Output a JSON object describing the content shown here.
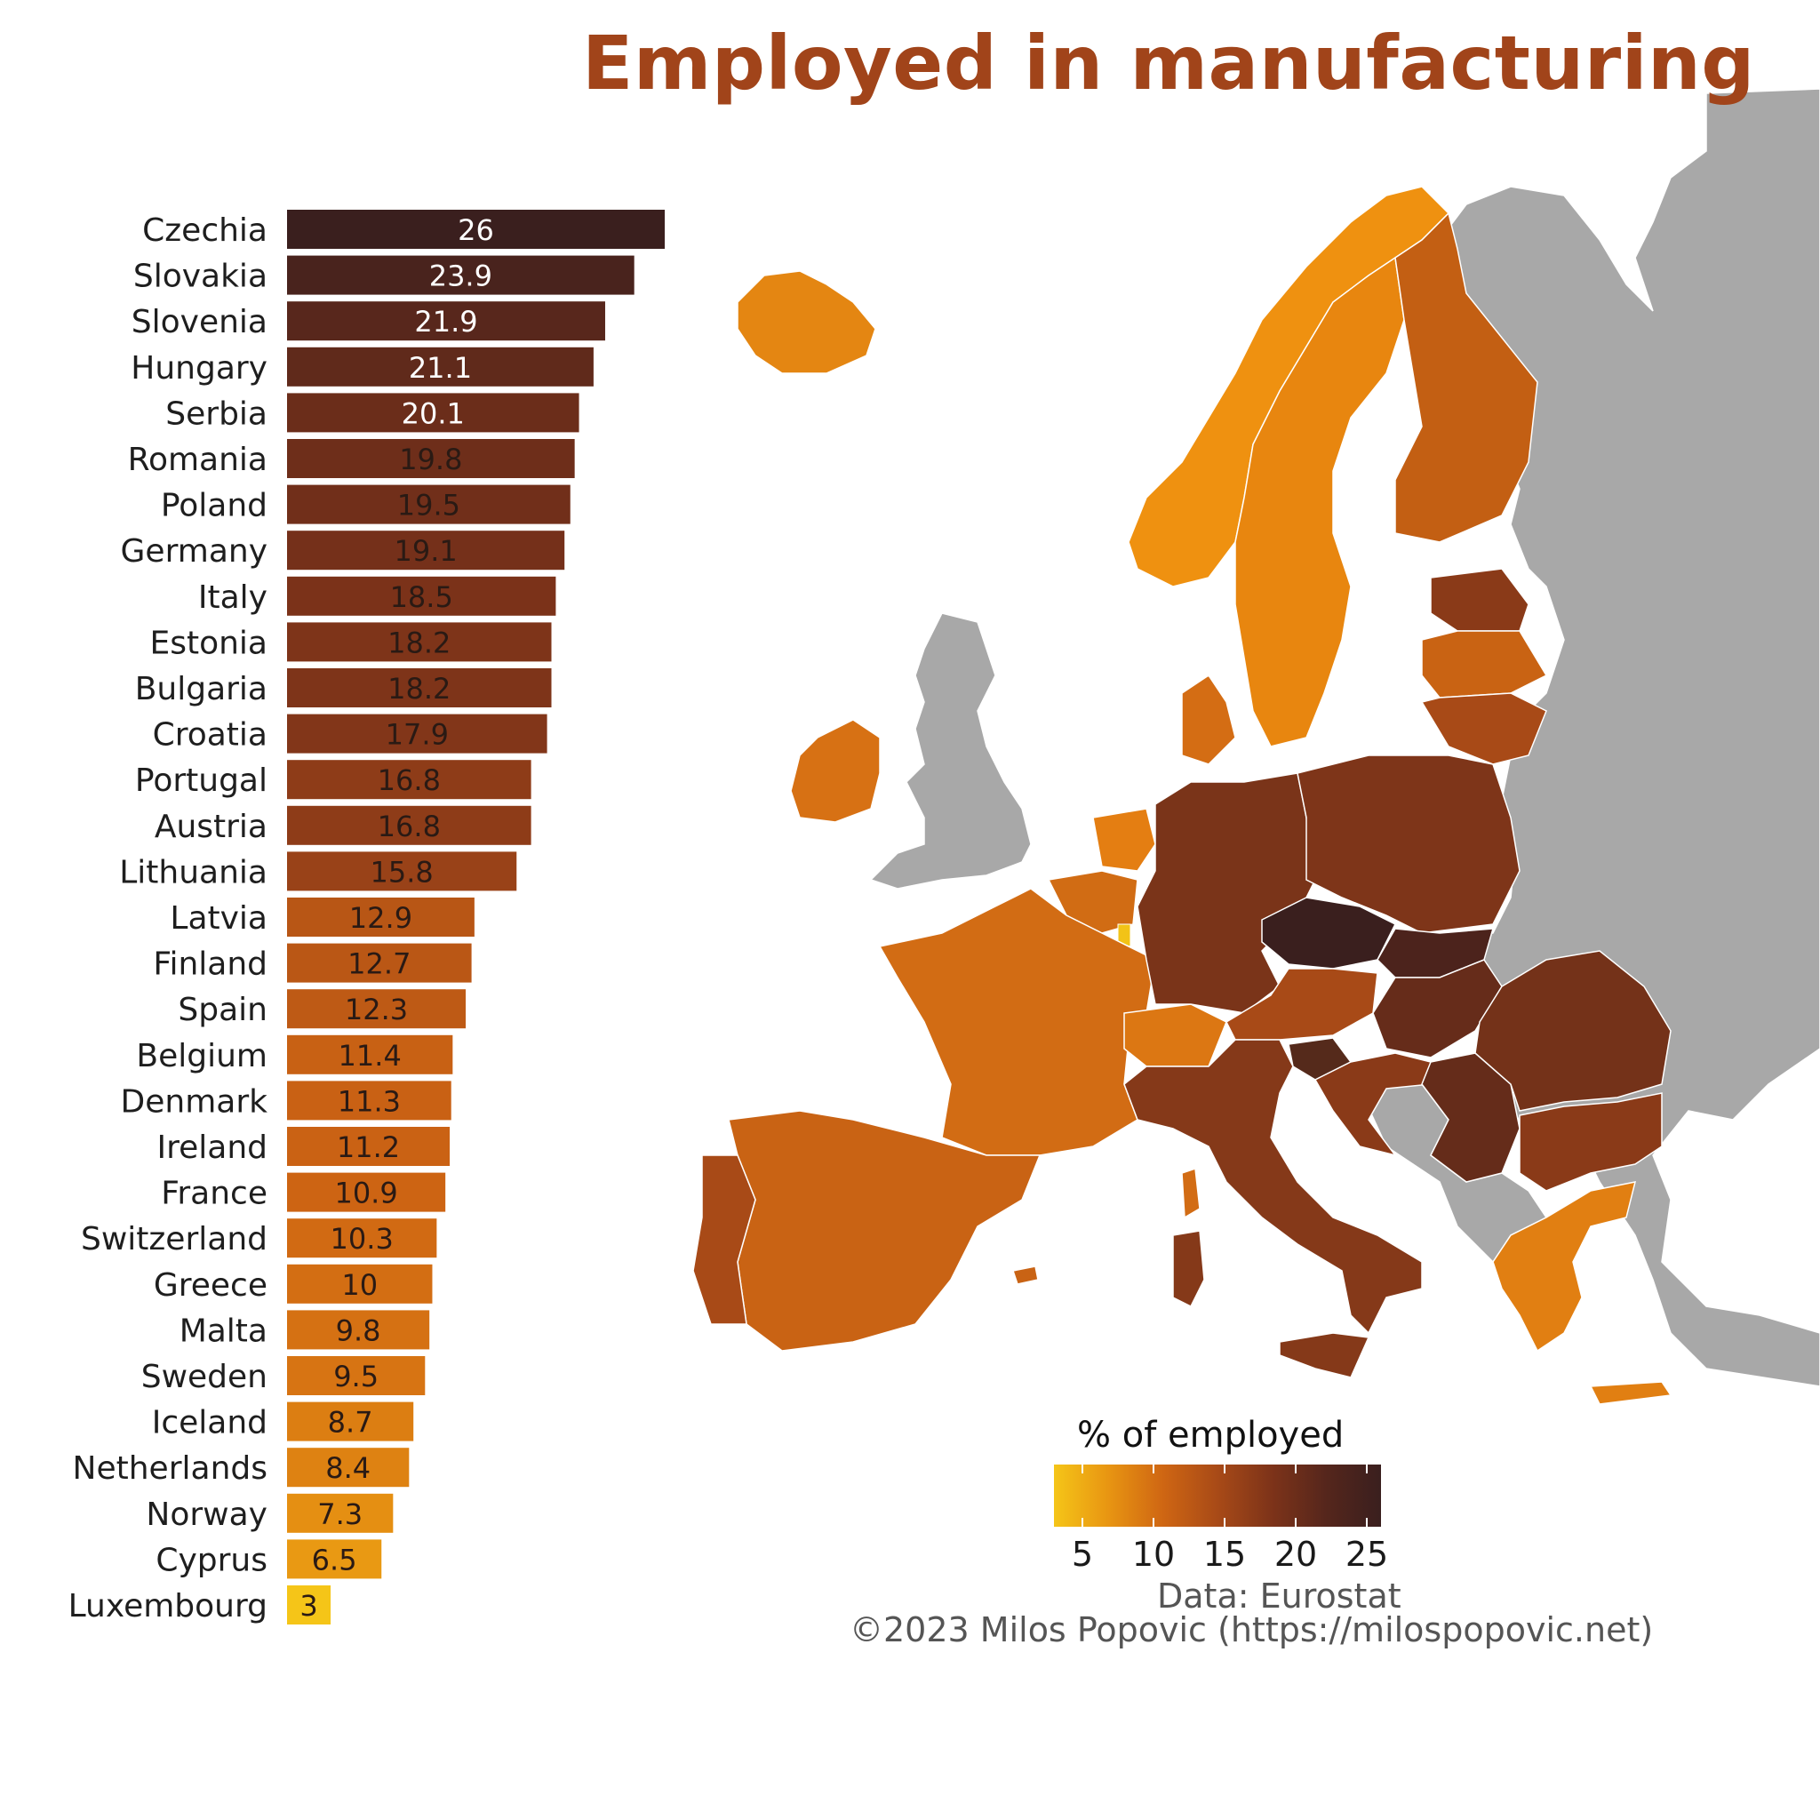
{
  "title": "Employed in manufacturing",
  "chart_data": {
    "type": "bar",
    "orientation": "horizontal",
    "title": "Employed in manufacturing",
    "xlabel": "% of employed",
    "ylabel": "",
    "xlim": [
      0,
      26
    ],
    "categories": [
      "Czechia",
      "Slovakia",
      "Slovenia",
      "Hungary",
      "Serbia",
      "Romania",
      "Poland",
      "Germany",
      "Italy",
      "Estonia",
      "Bulgaria",
      "Croatia",
      "Portugal",
      "Austria",
      "Lithuania",
      "Latvia",
      "Finland",
      "Spain",
      "Belgium",
      "Denmark",
      "Ireland",
      "France",
      "Switzerland",
      "Greece",
      "Malta",
      "Sweden",
      "Iceland",
      "Netherlands",
      "Norway",
      "Cyprus",
      "Luxembourg"
    ],
    "values": [
      26,
      23.9,
      21.9,
      21.1,
      20.1,
      19.8,
      19.5,
      19.1,
      18.5,
      18.2,
      18.2,
      17.9,
      16.8,
      16.8,
      15.8,
      12.9,
      12.7,
      12.3,
      11.4,
      11.3,
      11.2,
      10.9,
      10.3,
      10,
      9.8,
      9.5,
      8.7,
      8.4,
      7.3,
      6.5,
      3
    ],
    "value_labels": [
      "26",
      "23.9",
      "21.9",
      "21.1",
      "20.1",
      "19.8",
      "19.5",
      "19.1",
      "18.5",
      "18.2",
      "18.2",
      "17.9",
      "16.8",
      "16.8",
      "15.8",
      "12.9",
      "12.7",
      "12.3",
      "11.4",
      "11.3",
      "11.2",
      "10.9",
      "10.3",
      "10",
      "9.8",
      "9.5",
      "8.7",
      "8.4",
      "7.3",
      "6.5",
      "3"
    ],
    "colorscale": {
      "min": 3,
      "max": 26,
      "stops": [
        "#f5c518",
        "#e89512",
        "#cf6613",
        "#a84a17",
        "#7d3319",
        "#55261c",
        "#3a1f1e"
      ]
    }
  },
  "legend": {
    "title": "% of employed",
    "range": [
      3,
      26
    ],
    "ticks": [
      "5",
      "10",
      "15",
      "20",
      "25"
    ],
    "tick_values": [
      5,
      10,
      15,
      20,
      25
    ]
  },
  "map": {
    "no_data_color": "#a8a8a8",
    "sea_color": "#ffffff"
  },
  "footer": {
    "source": "Data: Eurostat",
    "credit": "©2023 Milos Popovic (https://milospopovic.net)"
  }
}
